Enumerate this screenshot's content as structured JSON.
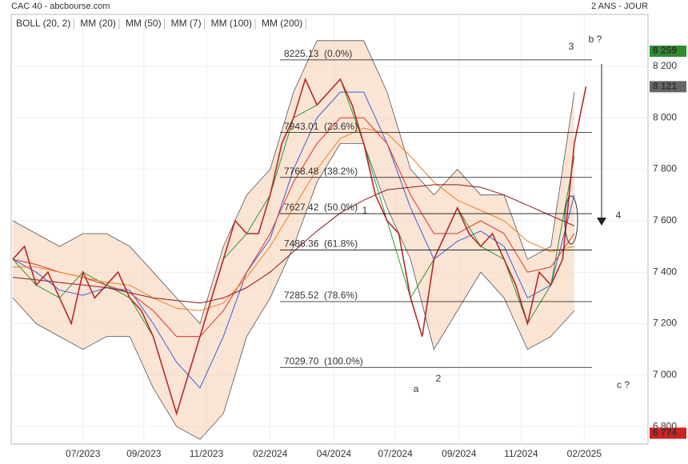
{
  "chart_data": {
    "type": "line",
    "title": "CAC 40 - abcbourse.com",
    "subtitle": "2 ANS - JOUR",
    "xlim": [
      0,
      108.6
    ],
    "ylim": [
      6732,
      8402
    ],
    "xticks": [
      {
        "value": 12,
        "label": "07/2023"
      },
      {
        "value": 22.4,
        "label": "09/2023"
      },
      {
        "value": 33.1,
        "label": "11/2023"
      },
      {
        "value": 44,
        "label": "02/2024"
      },
      {
        "value": 54.9,
        "label": "04/2024"
      },
      {
        "value": 65.4,
        "label": "07/2024"
      },
      {
        "value": 76.3,
        "label": "09/2024"
      },
      {
        "value": 86.9,
        "label": "11/2024"
      },
      {
        "value": 97.7,
        "label": "02/2025"
      }
    ],
    "yticks": [
      {
        "value": 6800,
        "label": "6 800"
      },
      {
        "value": 7000,
        "label": "7 000"
      },
      {
        "value": 7200,
        "label": "7 200"
      },
      {
        "value": 7400,
        "label": "7 400"
      },
      {
        "value": 7600,
        "label": "7 600"
      },
      {
        "value": 7800,
        "label": "7 800"
      },
      {
        "value": 8000,
        "label": "8 000"
      },
      {
        "value": 8200,
        "label": "8 200"
      }
    ],
    "grid": true,
    "price": {
      "color": "#b8282a",
      "x": [
        0,
        2,
        4,
        6,
        8,
        10,
        12,
        14,
        16,
        18,
        20,
        22,
        24,
        26,
        28,
        30,
        32,
        34,
        36,
        38,
        40,
        42,
        44,
        46,
        48,
        50,
        52,
        54,
        56,
        58,
        60,
        62,
        64,
        66,
        68,
        70,
        72,
        74,
        76,
        78,
        80,
        82,
        84,
        86,
        88,
        90,
        92,
        94,
        96,
        98
      ],
      "values": [
        7450,
        7500,
        7350,
        7400,
        7300,
        7200,
        7400,
        7300,
        7350,
        7400,
        7300,
        7250,
        7150,
        7000,
        6850,
        7000,
        7150,
        7300,
        7450,
        7600,
        7550,
        7550,
        7700,
        7900,
        8000,
        8150,
        8050,
        8100,
        8150,
        8050,
        7900,
        7700,
        7600,
        7550,
        7300,
        7150,
        7450,
        7550,
        7650,
        7550,
        7500,
        7550,
        7450,
        7350,
        7200,
        7400,
        7350,
        7450,
        7900,
        8121
      ]
    },
    "bollinger": {
      "name": "BOLL (20, 2)",
      "color": "#f5cdb0",
      "x": [
        0,
        4,
        8,
        12,
        16,
        20,
        24,
        28,
        32,
        36,
        40,
        44,
        48,
        52,
        56,
        60,
        64,
        68,
        72,
        76,
        80,
        84,
        88,
        92,
        96
      ],
      "upper": [
        7600,
        7550,
        7500,
        7550,
        7550,
        7500,
        7400,
        7300,
        7200,
        7500,
        7700,
        7800,
        8100,
        8300,
        8300,
        8300,
        8100,
        7800,
        7700,
        7800,
        7700,
        7700,
        7450,
        7500,
        8100
      ],
      "lower": [
        7300,
        7200,
        7150,
        7100,
        7150,
        7150,
        6950,
        6800,
        6750,
        6850,
        7150,
        7300,
        7500,
        7750,
        7900,
        7900,
        7650,
        7450,
        7100,
        7250,
        7400,
        7300,
        7100,
        7150,
        7250
      ]
    },
    "ma_x": [
      0,
      4,
      8,
      12,
      16,
      20,
      24,
      28,
      32,
      36,
      40,
      44,
      48,
      52,
      56,
      60,
      64,
      68,
      72,
      76,
      80,
      84,
      88,
      92,
      96
    ],
    "series": [
      {
        "name": "MM (20)",
        "color": "#3a5fd8",
        "values": [
          7450,
          7400,
          7330,
          7310,
          7340,
          7330,
          7200,
          7050,
          6950,
          7150,
          7400,
          7530,
          7800,
          8000,
          8100,
          8100,
          7900,
          7650,
          7450,
          7520,
          7560,
          7500,
          7300,
          7350,
          7700
        ]
      },
      {
        "name": "MM (50)",
        "color": "#e03030",
        "values": [
          7450,
          7430,
          7400,
          7380,
          7350,
          7320,
          7250,
          7150,
          7150,
          7250,
          7400,
          7550,
          7750,
          7900,
          8000,
          8000,
          7900,
          7700,
          7550,
          7550,
          7600,
          7550,
          7400,
          7420,
          7550
        ]
      },
      {
        "name": "MM (7)",
        "color": "#2a9a2a",
        "values": [
          7450,
          7350,
          7300,
          7400,
          7350,
          7300,
          7150,
          6850,
          7150,
          7450,
          7550,
          7700,
          8000,
          8050,
          8150,
          7900,
          7600,
          7300,
          7450,
          7650,
          7500,
          7450,
          7200,
          7350,
          7850
        ]
      },
      {
        "name": "MM (100)",
        "color": "#f08020",
        "values": [
          7420,
          7420,
          7400,
          7380,
          7360,
          7350,
          7300,
          7260,
          7250,
          7280,
          7380,
          7500,
          7650,
          7800,
          7920,
          7960,
          7940,
          7850,
          7750,
          7680,
          7640,
          7600,
          7520,
          7480,
          7500
        ]
      },
      {
        "name": "MM (200)",
        "color": "#8b1a1a",
        "values": [
          7380,
          7370,
          7360,
          7350,
          7340,
          7320,
          7300,
          7290,
          7280,
          7300,
          7340,
          7400,
          7480,
          7560,
          7630,
          7680,
          7720,
          7730,
          7740,
          7740,
          7730,
          7700,
          7660,
          7620,
          7580
        ]
      }
    ],
    "fib_levels": [
      {
        "value": 8225.13,
        "label": "8225.13  (0.0%)"
      },
      {
        "value": 7943.01,
        "label": "7943.01  (23.6%)"
      },
      {
        "value": 7768.48,
        "label": "7768.48  (38.2%)"
      },
      {
        "value": 7627.42,
        "label": "7627.42  (50.0%)"
      },
      {
        "value": 7486.36,
        "label": "7486.36  (61.8%)"
      },
      {
        "value": 7285.52,
        "label": "7285.52  (78.6%)"
      },
      {
        "value": 7029.7,
        "label": "7029.70  (100.0%)"
      }
    ],
    "price_markers": [
      {
        "value": 8259,
        "label": "8 259",
        "color": "#2e8b2e"
      },
      {
        "value": 8121,
        "label": "8 121",
        "color": "#666666"
      },
      {
        "value": 6774,
        "label": "6 774",
        "color": "#cc2222"
      }
    ],
    "annotations": [
      {
        "text": "1",
        "color": "#1a237e"
      },
      {
        "text": "2",
        "color": "#1a237e"
      },
      {
        "text": "3",
        "color": "#1a237e"
      },
      {
        "text": "4",
        "color": "#1a237e"
      },
      {
        "text": "a",
        "color": "#b71c1c"
      },
      {
        "text": "b ?",
        "color": "#b71c1c"
      },
      {
        "text": "c ?",
        "color": "#b71c1c"
      }
    ]
  }
}
